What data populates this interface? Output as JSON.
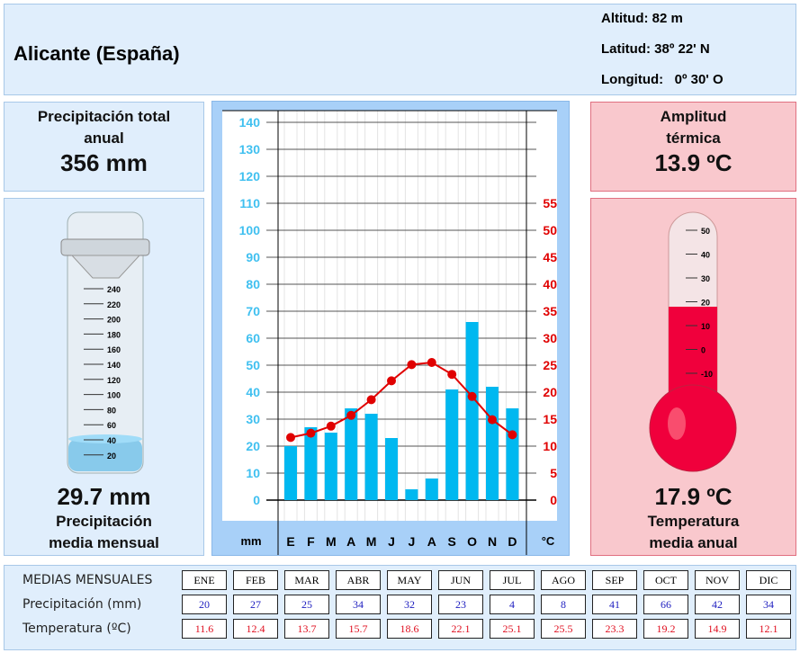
{
  "header": {
    "title": "Alicante (España)",
    "altitud": "Altitud: 82 m",
    "latitud": "Latitud: 38º 22' N",
    "longitud": "Longitud:   0º 30' O"
  },
  "precip_total": {
    "label_line1": "Precipitación total",
    "label_line2": "anual",
    "value": "356 mm"
  },
  "precip_media": {
    "value": "29.7 mm",
    "label_line1": "Precipitación",
    "label_line2": "media mensual",
    "gauge_ticks": [
      "240",
      "220",
      "200",
      "180",
      "160",
      "140",
      "120",
      "100",
      "80",
      "60",
      "40",
      "20"
    ],
    "gauge_level_mm": 29.7
  },
  "amplitud": {
    "label_line1": "Amplitud",
    "label_line2": "térmica",
    "value": "13.9 ºC"
  },
  "temp_media": {
    "value": "17.9 ºC",
    "label_line1": "Temperatura",
    "label_line2": "media anual",
    "thermo_ticks": [
      "50",
      "40",
      "30",
      "20",
      "10",
      "0",
      "-10"
    ],
    "thermo_level_c": 17.9
  },
  "colors": {
    "precip": "#00b8f0",
    "temp": "#e00000",
    "panel_blue": "#e0eefc",
    "panel_pink": "#f9c8cd"
  },
  "chart_data": {
    "type": "bar+line",
    "categories": [
      "E",
      "F",
      "M",
      "A",
      "M",
      "J",
      "J",
      "A",
      "S",
      "O",
      "N",
      "D"
    ],
    "series": [
      {
        "name": "mm",
        "type": "bar",
        "axis": "left",
        "values": [
          20,
          27,
          25,
          34,
          32,
          23,
          4,
          8,
          41,
          66,
          42,
          34
        ]
      },
      {
        "name": "°C",
        "type": "line",
        "axis": "right",
        "values": [
          11.6,
          12.4,
          13.7,
          15.7,
          18.6,
          22.1,
          25.1,
          25.5,
          23.3,
          19.2,
          14.9,
          12.1
        ]
      }
    ],
    "left_ticks": [
      "0",
      "10",
      "20",
      "30",
      "40",
      "50",
      "60",
      "70",
      "80",
      "90",
      "100",
      "110",
      "120",
      "130",
      "140"
    ],
    "right_ticks": [
      "0",
      "5",
      "10",
      "15",
      "20",
      "25",
      "30",
      "35",
      "40",
      "45",
      "50",
      "55"
    ],
    "ylim_left": [
      0,
      140
    ],
    "ylim_right": [
      0,
      70
    ],
    "xlabel_left": "mm",
    "xlabel_right": "°C"
  },
  "table": {
    "heading": "MEDIAS MENSUALES",
    "precip_label": "Precipitación (mm)",
    "temp_label": "Temperatura (ºC)",
    "months": [
      "ENE",
      "FEB",
      "MAR",
      "ABR",
      "MAY",
      "JUN",
      "JUL",
      "AGO",
      "SEP",
      "OCT",
      "NOV",
      "DIC"
    ],
    "precip": [
      "20",
      "27",
      "25",
      "34",
      "32",
      "23",
      "4",
      "8",
      "41",
      "66",
      "42",
      "34"
    ],
    "temp": [
      "11.6",
      "12.4",
      "13.7",
      "15.7",
      "18.6",
      "22.1",
      "25.1",
      "25.5",
      "23.3",
      "19.2",
      "14.9",
      "12.1"
    ]
  }
}
